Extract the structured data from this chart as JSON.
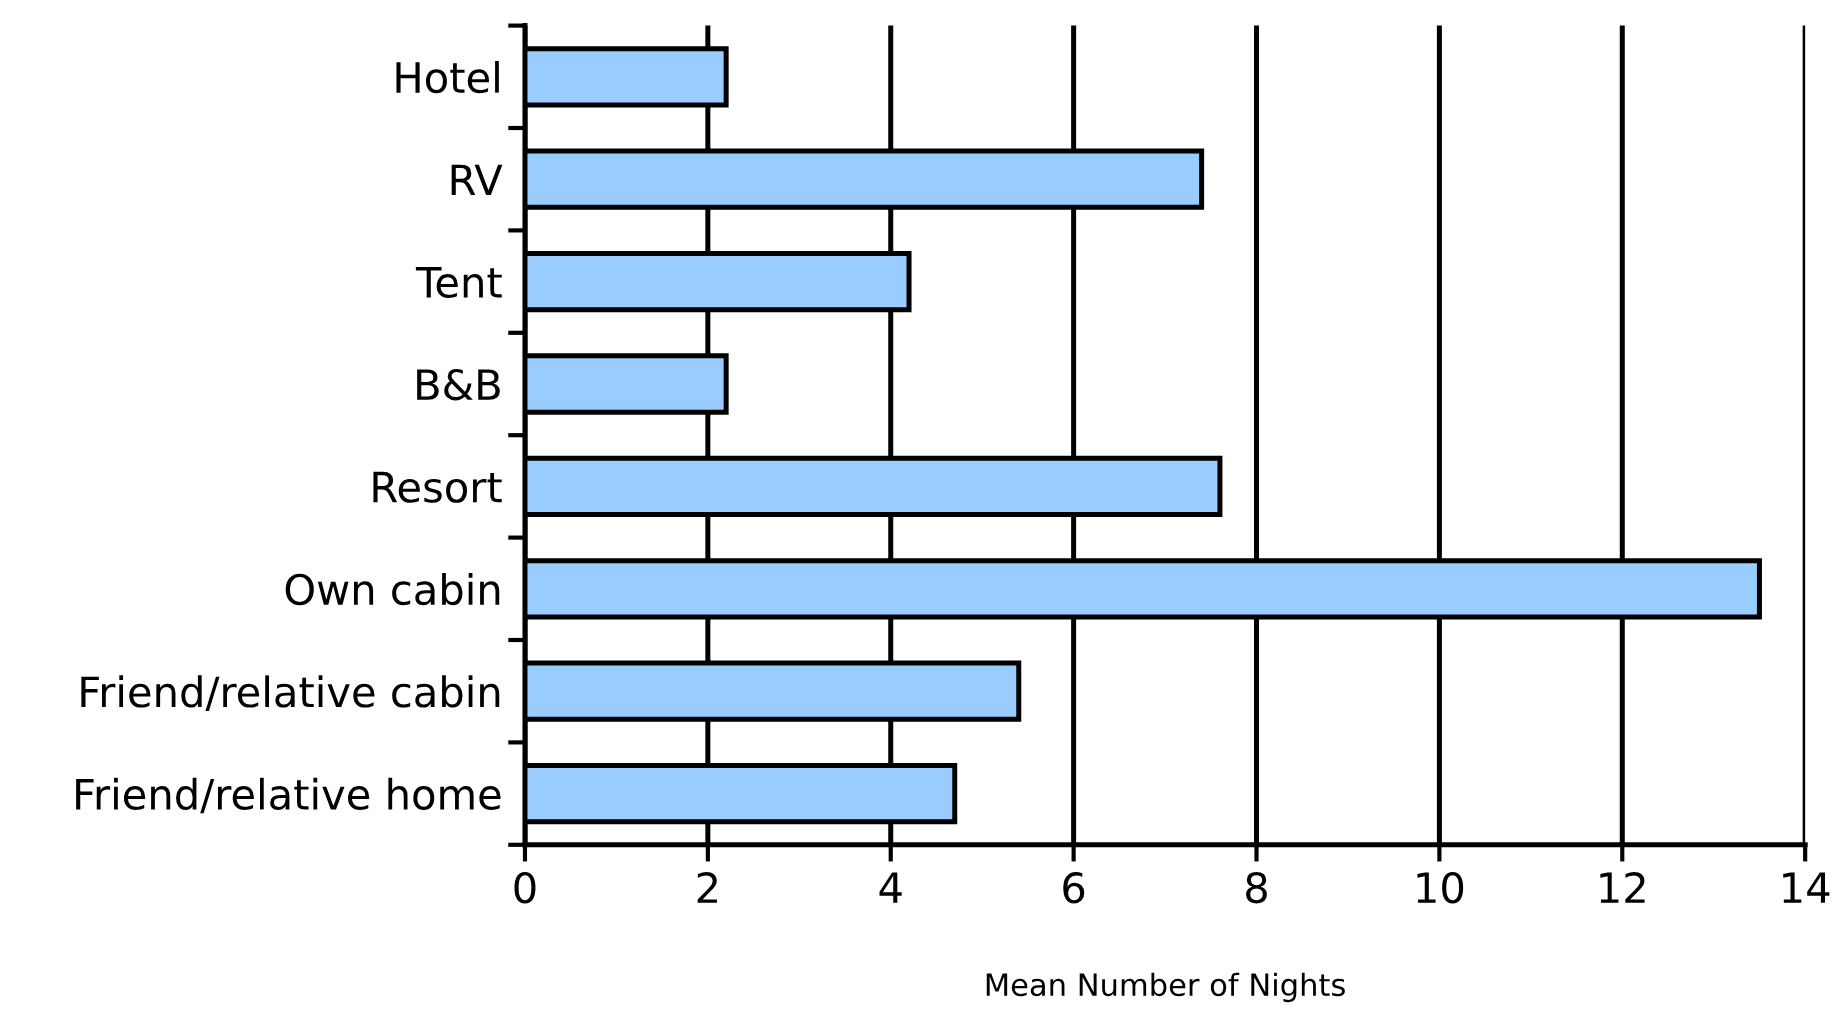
{
  "chart_data": {
    "type": "bar",
    "orientation": "horizontal",
    "categories": [
      "Hotel",
      "RV",
      "Tent",
      "B&B",
      "Resort",
      "Own cabin",
      "Friend/relative cabin",
      "Friend/relative home"
    ],
    "values": [
      2.2,
      7.4,
      4.2,
      2.2,
      7.6,
      13.5,
      5.4,
      4.7
    ],
    "color": "#99ccff",
    "xlabel": "Mean Number of Nights",
    "xlim": [
      0,
      14
    ],
    "xticks": [
      0,
      2,
      4,
      6,
      8,
      10,
      12,
      14
    ],
    "grid": "x",
    "legend": false
  }
}
